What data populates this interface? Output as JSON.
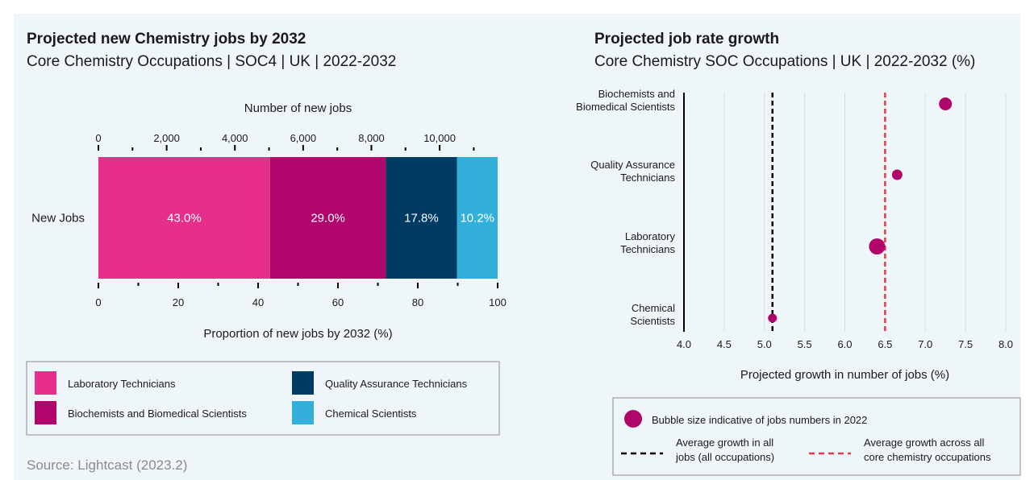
{
  "left": {
    "title": "Projected new Chemistry jobs by 2032",
    "subtitle": "Core Chemistry Occupations | SOC4 | UK | 2022-2032",
    "legend": [
      {
        "label": "Laboratory Technicians",
        "color": "#e62f8a"
      },
      {
        "label": "Quality Assurance Technicians",
        "color": "#003b66"
      },
      {
        "label": "Biochemists and Biomedical Scientists",
        "color": "#b0066b"
      },
      {
        "label": "Chemical Scientists",
        "color": "#33b0d9"
      }
    ],
    "source": "Source: Lightcast (2023.2)"
  },
  "right": {
    "title": "Projected job rate growth",
    "subtitle": "Core Chemistry SOC Occupations | UK | 2022-2032 (%)",
    "legend": {
      "bubble": "Bubble size indicative of jobs numbers in 2022",
      "black_line": [
        "Average growth in all",
        "jobs (all occupations)"
      ],
      "red_line": [
        "Average growth across all",
        "core chemistry occupations"
      ]
    }
  },
  "chart_data": [
    {
      "type": "bar",
      "orientation": "horizontal-stacked",
      "categories": [
        "New Jobs"
      ],
      "series": [
        {
          "name": "Laboratory Technicians",
          "values": [
            43.0
          ],
          "label": "43.0%",
          "color": "#e62f8a"
        },
        {
          "name": "Biochemists and Biomedical Scientists",
          "values": [
            29.0
          ],
          "label": "29.0%",
          "color": "#b0066b"
        },
        {
          "name": "Quality Assurance Technicians",
          "values": [
            17.8
          ],
          "label": "17.8%",
          "color": "#003b66"
        },
        {
          "name": "Chemical Scientists",
          "values": [
            10.2
          ],
          "label": "10.2%",
          "color": "#33b0d9"
        }
      ],
      "xlabel": "Proportion of new jobs by 2032 (%)",
      "xlim": [
        0,
        100
      ],
      "xticks": [
        0,
        20,
        40,
        60,
        80,
        100
      ],
      "x2label": "Number of new jobs",
      "x2lim": [
        0,
        11700
      ],
      "x2ticks": [
        0,
        2000,
        4000,
        6000,
        8000,
        10000
      ],
      "x2ticklabels": [
        "0",
        "2,000",
        "4,000",
        "6,000",
        "8,000",
        "10,000"
      ]
    },
    {
      "type": "scatter",
      "categories": [
        [
          "Biochemists and",
          "Biomedical Scientists"
        ],
        [
          "Quality Assurance",
          "Technicians"
        ],
        [
          "Laboratory",
          "Technicians"
        ],
        [
          "Chemical",
          "Scientists"
        ]
      ],
      "points": [
        {
          "x": 7.25,
          "size": 8
        },
        {
          "x": 6.65,
          "size": 6.5
        },
        {
          "x": 6.4,
          "size": 10
        },
        {
          "x": 5.1,
          "size": 5.5
        }
      ],
      "xlabel": "Projected growth in number of jobs (%)",
      "xlim": [
        4.0,
        8.0
      ],
      "xticks": [
        "4.0",
        "4.5",
        "5.0",
        "5.5",
        "6.0",
        "6.5",
        "7.0",
        "7.5",
        "8.0"
      ],
      "reference_lines": [
        {
          "x": 5.1,
          "color": "#000000",
          "style": "dashed"
        },
        {
          "x": 6.5,
          "color": "#e8394d",
          "style": "dashed"
        }
      ],
      "bubble_color": "#b0066b",
      "grid": true
    }
  ]
}
